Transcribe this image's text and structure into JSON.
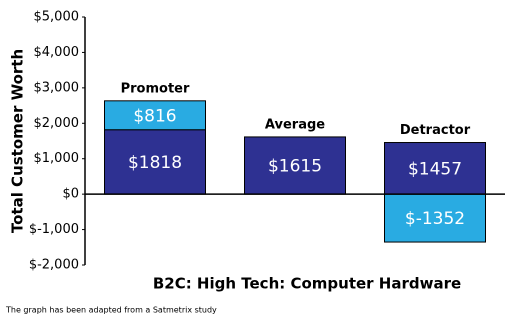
{
  "chart_data": {
    "type": "stacked-bar",
    "x_label": "B2C: High Tech: Computer Hardware",
    "y_label": "Total Customer Worth",
    "note": "The graph has been adapted from a Satmetrix study",
    "categories": [
      "Promoter",
      "Average",
      "Detractor"
    ],
    "series": [
      {
        "color": "#2e3192",
        "values": [
          1818,
          1615,
          1457
        ],
        "value_labels": [
          "$1818",
          "$1615",
          "$1457"
        ]
      },
      {
        "color": "#29abe2",
        "values": [
          816,
          null,
          -1352
        ],
        "value_labels": [
          "$816",
          null,
          "$-1352"
        ]
      }
    ],
    "ylim": [
      -2000,
      5000
    ],
    "yticks": [
      {
        "value": -2000,
        "label": "$-2,000"
      },
      {
        "value": -1000,
        "label": "$-1,000"
      },
      {
        "value": 0,
        "label": "$0"
      },
      {
        "value": 1000,
        "label": "$1,000"
      },
      {
        "value": 2000,
        "label": "$2,000"
      },
      {
        "value": 3000,
        "label": "$3,000"
      },
      {
        "value": 4000,
        "label": "$4,000"
      },
      {
        "value": 5000,
        "label": "$5,000"
      }
    ]
  }
}
